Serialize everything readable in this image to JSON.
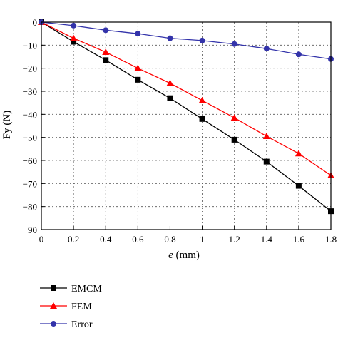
{
  "chart_data": {
    "type": "line",
    "title": "",
    "xlabel_italic": "e",
    "xlabel_unit": " (mm)",
    "ylabel": "Fy (N)",
    "xlim": [
      0,
      1.8
    ],
    "ylim": [
      -90,
      0
    ],
    "x_ticks": [
      "0",
      "0.2",
      "0.4",
      "0.6",
      "0.8",
      "1",
      "1.2",
      "1.4",
      "1.6",
      "1.8"
    ],
    "y_ticks": [
      "0",
      "−10",
      "−20",
      "−30",
      "−40",
      "−50",
      "−60",
      "−70",
      "−80",
      "−90"
    ],
    "x_tick_values": [
      0,
      0.2,
      0.4,
      0.6,
      0.8,
      1.0,
      1.2,
      1.4,
      1.6,
      1.8
    ],
    "y_tick_values": [
      0,
      -10,
      -20,
      -30,
      -40,
      -50,
      -60,
      -70,
      -80,
      -90
    ],
    "grid": true,
    "legend_position": "bottom-left",
    "x": [
      0,
      0.2,
      0.4,
      0.6,
      0.8,
      1.0,
      1.2,
      1.4,
      1.6,
      1.8
    ],
    "series": [
      {
        "name": "EMCM",
        "marker": "square",
        "color": "#000000",
        "values": [
          0,
          -8.5,
          -16.5,
          -25,
          -33,
          -42,
          -51,
          -60.5,
          -71,
          -82
        ]
      },
      {
        "name": "FEM",
        "marker": "triangle",
        "color": "#ff0000",
        "values": [
          0,
          -7,
          -13,
          -20,
          -26.5,
          -34,
          -41.5,
          -49.5,
          -57,
          -66.5
        ]
      },
      {
        "name": "Error",
        "marker": "circle",
        "color": "#3333aa",
        "values": [
          0,
          -1.5,
          -3.5,
          -5,
          -7,
          -8,
          -9.5,
          -11.5,
          -14,
          -16
        ]
      }
    ]
  }
}
